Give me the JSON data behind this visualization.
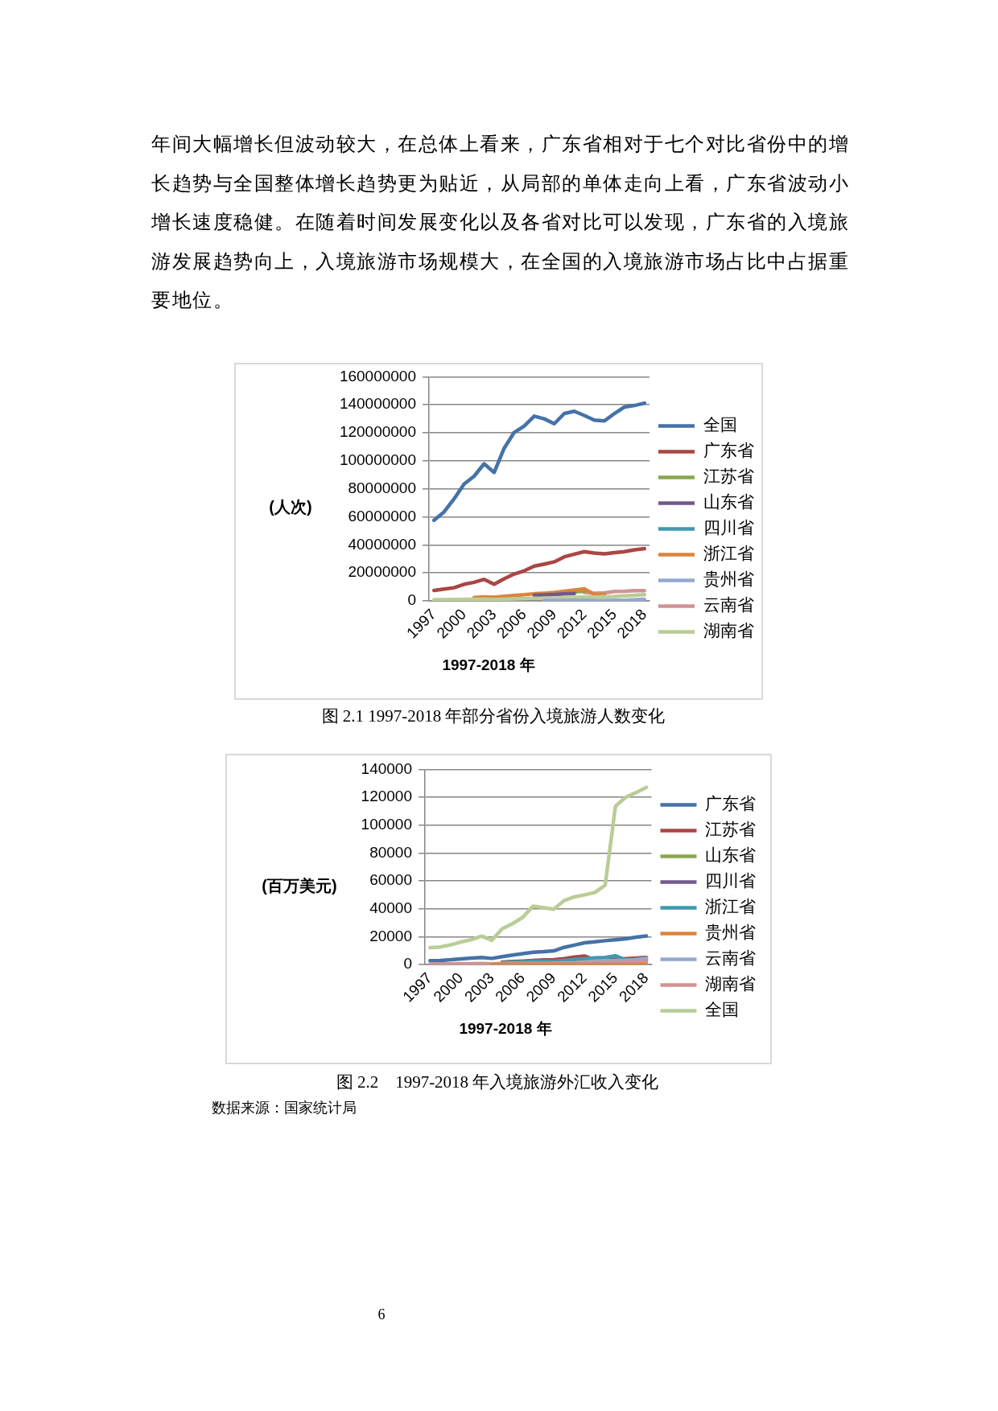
{
  "chart_data": [
    {
      "type": "line",
      "ylabel": "(人次)",
      "xlabel": "1997-2018 年",
      "categories": [
        "1997",
        null,
        null,
        "2000",
        null,
        null,
        "2003",
        null,
        null,
        "2006",
        null,
        null,
        "2009",
        null,
        null,
        "2012",
        null,
        null,
        "2015",
        null,
        null,
        "2018"
      ],
      "ylim": [
        0,
        160000000
      ],
      "yticks": [
        0,
        20000000,
        40000000,
        60000000,
        80000000,
        100000000,
        120000000,
        140000000,
        160000000
      ],
      "grid": "y",
      "legend": "right",
      "marker": "none",
      "line_style": "solid",
      "series": [
        {
          "name": "全国",
          "color": "#4572a7",
          "values": [
            57600000,
            63500000,
            72800000,
            83400000,
            89000000,
            97900000,
            91700000,
            109000000,
            120300000,
            124900000,
            131900000,
            130000000,
            126500000,
            133800000,
            135400000,
            132400000,
            129100000,
            128500000,
            133800000,
            138400000,
            139500000,
            141200000
          ]
        },
        {
          "name": "广东省",
          "color": "#aa4643",
          "values": [
            7500000,
            8500000,
            9400000,
            11900000,
            13300000,
            15400000,
            11900000,
            15800000,
            19200000,
            21500000,
            24800000,
            26300000,
            27900000,
            31500000,
            33400000,
            35200000,
            34200000,
            33600000,
            34400000,
            35200000,
            36500000,
            37300000
          ]
        },
        {
          "name": "江苏省",
          "color": "#89a54e",
          "values": [
            null,
            null,
            null,
            null,
            null,
            null,
            null,
            null,
            null,
            null,
            null,
            null,
            null,
            5800000,
            6400000,
            6900000,
            null,
            null,
            null,
            null,
            null,
            null
          ]
        },
        {
          "name": "山东省",
          "color": "#71588f",
          "values": [
            null,
            null,
            null,
            null,
            null,
            null,
            null,
            null,
            null,
            null,
            4000000,
            4300000,
            4600000,
            5000000,
            5300000,
            null,
            null,
            null,
            null,
            null,
            null,
            null
          ]
        },
        {
          "name": "四川省",
          "color": "#4198af",
          "values": [
            null,
            null,
            null,
            null,
            null,
            null,
            null,
            null,
            null,
            null,
            null,
            null,
            null,
            null,
            null,
            null,
            null,
            null,
            null,
            null,
            null,
            null
          ]
        },
        {
          "name": "浙江省",
          "color": "#db843d",
          "values": [
            null,
            null,
            null,
            null,
            2500000,
            2900000,
            2600000,
            3300000,
            3900000,
            4400000,
            5100000,
            5500000,
            6000000,
            6900000,
            7700000,
            8600000,
            4800000,
            4600000,
            null,
            null,
            null,
            null
          ]
        },
        {
          "name": "贵州省",
          "color": "#93a9cf",
          "values": [
            null,
            null,
            null,
            null,
            null,
            null,
            null,
            null,
            null,
            null,
            null,
            300000,
            300000,
            300000,
            400000,
            400000,
            300000,
            300000,
            400000,
            500000,
            800000,
            1100000
          ]
        },
        {
          "name": "云南省",
          "color": "#d19392",
          "values": [
            null,
            null,
            null,
            null,
            null,
            null,
            null,
            null,
            null,
            null,
            null,
            null,
            null,
            null,
            null,
            6000000,
            5400000,
            5700000,
            6700000,
            6900000,
            7300000,
            7300000
          ]
        },
        {
          "name": "湖南省",
          "color": "#b9cd96",
          "values": [
            800000,
            900000,
            1000000,
            1100000,
            1200000,
            1300000,
            1000000,
            1300000,
            1500000,
            1700000,
            1900000,
            1800000,
            1900000,
            2300000,
            2600000,
            2800000,
            2800000,
            3000000,
            3200000,
            3600000,
            4000000,
            4400000
          ]
        }
      ],
      "annotations": [
        "年间大幅增长但波动较大，在总体上看来，广东省相对于七个对比省份中的增长趋势与全国整体增长趋势更为贴近，从局部的单体走向上看，广东省波动小增长速度稳健。在随着时间发展变化以及各省对比可以发现，广东省的入境旅游发展趋势向上，入境旅游市场规模大，在全国的入境旅游市场占比中占据重要地位。",
        "图 2.1 1997-2018 年部分省份入境旅游人数变化"
      ]
    },
    {
      "type": "line",
      "ylabel": "(百万美元)",
      "xlabel": "1997-2018 年",
      "categories": [
        "1997",
        null,
        null,
        "2000",
        null,
        null,
        "2003",
        null,
        null,
        "2006",
        null,
        null,
        "2009",
        null,
        null,
        "2012",
        null,
        null,
        "2015",
        null,
        null,
        "2018"
      ],
      "ylim": [
        0,
        140000
      ],
      "yticks": [
        0,
        20000,
        40000,
        60000,
        80000,
        100000,
        120000,
        140000
      ],
      "grid": "y",
      "legend": "right",
      "marker": "none",
      "line_style": "solid",
      "series": [
        {
          "name": "广东省",
          "color": "#4572a7",
          "values": [
            2700,
            2900,
            3400,
            4100,
            4600,
            5100,
            4400,
            5600,
            6800,
            7800,
            8800,
            9200,
            9800,
            12300,
            13900,
            15600,
            16300,
            17100,
            17800,
            18500,
            19600,
            20500
          ]
        },
        {
          "name": "江苏省",
          "color": "#aa4643",
          "values": [
            null,
            null,
            null,
            null,
            null,
            null,
            null,
            1700,
            2100,
            2500,
            2900,
            3300,
            3400,
            4200,
            5400,
            6100,
            3300,
            3600,
            3800,
            4200,
            4600,
            5000
          ]
        },
        {
          "name": "山东省",
          "color": "#89a54e",
          "values": [
            null,
            null,
            null,
            null,
            null,
            null,
            null,
            null,
            null,
            null,
            null,
            null,
            null,
            null,
            null,
            null,
            null,
            null,
            null,
            null,
            null,
            null
          ]
        },
        {
          "name": "四川省",
          "color": "#71588f",
          "values": [
            null,
            null,
            null,
            null,
            null,
            null,
            null,
            null,
            null,
            null,
            null,
            null,
            null,
            null,
            null,
            null,
            null,
            null,
            null,
            null,
            null,
            null
          ]
        },
        {
          "name": "浙江省",
          "color": "#4198af",
          "values": [
            null,
            null,
            null,
            null,
            null,
            null,
            null,
            1500,
            1700,
            2000,
            2300,
            2400,
            2300,
            2900,
            3600,
            4000,
            4800,
            5000,
            6300,
            3300,
            3300,
            3400
          ]
        },
        {
          "name": "贵州省",
          "color": "#db843d",
          "values": [
            null,
            null,
            null,
            null,
            null,
            null,
            0,
            0,
            0,
            0,
            0,
            0,
            0,
            0,
            0,
            0,
            0,
            0,
            0,
            0,
            0,
            0
          ]
        },
        {
          "name": "云南省",
          "color": "#93a9cf",
          "values": [
            null,
            null,
            null,
            null,
            null,
            null,
            null,
            null,
            null,
            null,
            null,
            null,
            null,
            null,
            null,
            1900,
            2400,
            2700,
            2900,
            3100,
            3600,
            4400
          ]
        },
        {
          "name": "湖南省",
          "color": "#d19392",
          "values": [
            500,
            500,
            500,
            600,
            600,
            700,
            500,
            700,
            800,
            800,
            900,
            900,
            1000,
            1100,
            1200,
            1400,
            1500,
            1600,
            1700,
            1800,
            1900,
            2000
          ]
        },
        {
          "name": "全国",
          "color": "#b9cd96",
          "values": [
            12100,
            12600,
            14100,
            16200,
            17800,
            20400,
            17400,
            25700,
            29300,
            33900,
            41900,
            40800,
            39700,
            45800,
            48500,
            50000,
            51700,
            56900,
            113600,
            120000,
            123400,
            127100
          ]
        }
      ],
      "annotations": [
        "图 2.2　1997-2018 年入境旅游外汇收入变化",
        "数据来源：国家统计局",
        "6"
      ]
    }
  ]
}
